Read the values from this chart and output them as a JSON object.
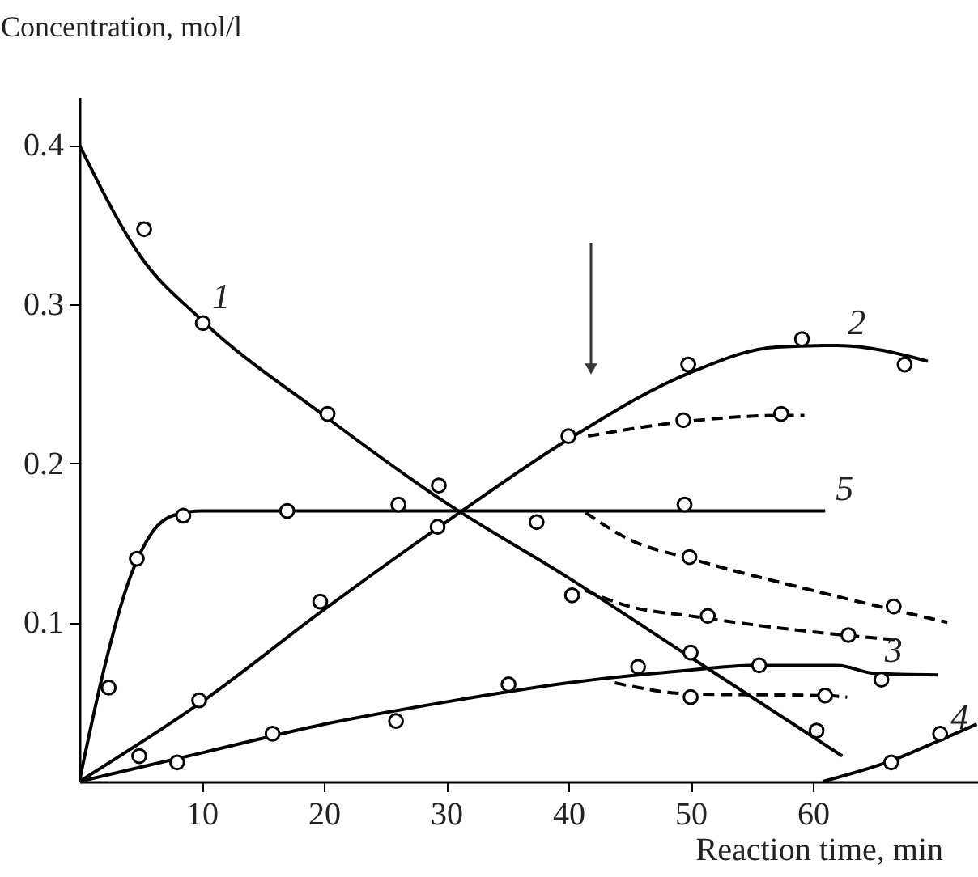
{
  "chart_data": {
    "type": "line",
    "xlabel": "Reaction time, min",
    "ylabel": "Concentration, mol/l",
    "xlim": [
      0,
      73.5
    ],
    "ylim": [
      0,
      0.43
    ],
    "xticks": [
      10,
      20,
      30,
      40,
      50,
      60
    ],
    "yticks": [
      0.1,
      0.2,
      0.3,
      0.4
    ],
    "grid": false,
    "series": [
      {
        "color": "#000000",
        "marker": "none",
        "line_style": "solid",
        "x": [
          0,
          5,
          10,
          20,
          30,
          40,
          50,
          62.4
        ],
        "values": [
          0.4,
          0.33,
          0.29,
          0.23,
          0.175,
          0.128,
          0.078,
          0.016
        ]
      },
      {
        "color": "#000000",
        "marker": "none",
        "line_style": "solid",
        "x": [
          0,
          10,
          20,
          30,
          40,
          50,
          57,
          62,
          69.4
        ],
        "values": [
          0,
          0.05,
          0.108,
          0.163,
          0.215,
          0.257,
          0.273,
          0.274,
          0.264
        ]
      },
      {
        "color": "#000000",
        "marker": "none",
        "line_style": "solid",
        "x": [
          0,
          10,
          20,
          30,
          40,
          50,
          55,
          62,
          65,
          70.2
        ],
        "values": [
          0,
          0.018,
          0.036,
          0.05,
          0.062,
          0.07,
          0.073,
          0.073,
          0.068,
          0.067
        ]
      },
      {
        "color": "#000000",
        "marker": "none",
        "line_style": "solid",
        "x": [
          60.8,
          66.4,
          70.4,
          73.4
        ],
        "values": [
          0,
          0.013,
          0.026,
          0.036
        ]
      },
      {
        "color": "#000000",
        "marker": "none",
        "line_style": "solid",
        "x": [
          0,
          2,
          4,
          6,
          8,
          10,
          61
        ],
        "values": [
          0,
          0.07,
          0.125,
          0.157,
          0.168,
          0.17,
          0.17
        ]
      },
      {
        "color": "#000000",
        "marker": "none",
        "line_style": "dashed",
        "x": [
          41.6,
          49.4,
          57.4,
          59.3
        ],
        "values": [
          0.217,
          0.226,
          0.23,
          0.23
        ]
      },
      {
        "color": "#000000",
        "marker": "none",
        "line_style": "dashed",
        "x": [
          41.4,
          45,
          50,
          60,
          71
        ],
        "values": [
          0.169,
          0.152,
          0.14,
          0.12,
          0.1
        ]
      },
      {
        "color": "#000000",
        "marker": "none",
        "line_style": "dashed",
        "x": [
          41.4,
          45,
          50,
          60,
          66.9
        ],
        "values": [
          0.12,
          0.11,
          0.104,
          0.094,
          0.089
        ]
      },
      {
        "color": "#000000",
        "marker": "none",
        "line_style": "dashed",
        "x": [
          43.8,
          50,
          61,
          62.8
        ],
        "values": [
          0.062,
          0.055,
          0.054,
          0.053
        ]
      },
      {
        "type": "scatter",
        "color": "#000000",
        "marker": "circle",
        "x": [
          5.3,
          10.1,
          20.3,
          29.4,
          40.3,
          50,
          60.3
        ],
        "values": [
          0.347,
          0.288,
          0.231,
          0.186,
          0.117,
          0.081,
          0.032
        ]
      },
      {
        "type": "scatter",
        "color": "#000000",
        "marker": "circle",
        "x": [
          4.9,
          9.8,
          19.7,
          29.3,
          40,
          49.8,
          59.1,
          67.5
        ],
        "values": [
          0.016,
          0.051,
          0.113,
          0.16,
          0.217,
          0.262,
          0.278,
          0.262
        ]
      },
      {
        "type": "scatter",
        "color": "#000000",
        "marker": "circle",
        "x": [
          8,
          15.8,
          25.9,
          35.1,
          45.7,
          55.6,
          65.6
        ],
        "values": [
          0.012,
          0.03,
          0.038,
          0.061,
          0.072,
          0.073,
          0.064
        ]
      },
      {
        "type": "scatter",
        "color": "#000000",
        "marker": "circle",
        "x": [
          66.4,
          70.4
        ],
        "values": [
          0.012,
          0.03
        ]
      },
      {
        "type": "scatter",
        "color": "#000000",
        "marker": "circle",
        "x": [
          2.4,
          4.7,
          8.5,
          17,
          26.1,
          37.4,
          49.5
        ],
        "values": [
          0.059,
          0.14,
          0.167,
          0.17,
          0.174,
          0.163,
          0.174
        ]
      },
      {
        "type": "scatter",
        "color": "#000000",
        "marker": "circle",
        "x": [
          49.4,
          57.4,
          49.9,
          66.6,
          51.4,
          62.9,
          50,
          61
        ],
        "values": [
          0.227,
          0.231,
          0.141,
          0.11,
          0.104,
          0.092,
          0.053,
          0.054
        ]
      }
    ],
    "annotations": [
      {
        "text": "1",
        "x": 10,
        "y": 0.29
      },
      {
        "text": "2",
        "x": 62,
        "y": 0.274
      },
      {
        "text": "3",
        "x": 65,
        "y": 0.068
      },
      {
        "text": "4",
        "x": 70.4,
        "y": 0.026
      },
      {
        "text": "5",
        "x": 61,
        "y": 0.17
      }
    ]
  }
}
